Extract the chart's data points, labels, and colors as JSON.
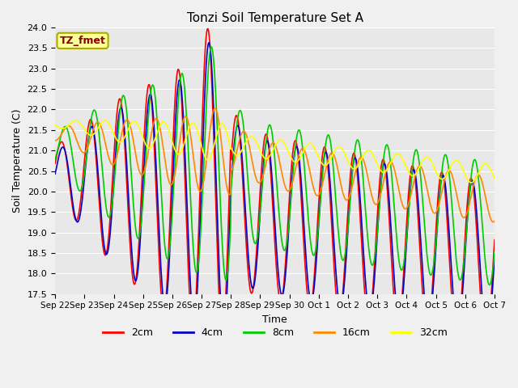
{
  "title": "Tonzi Soil Temperature Set A",
  "xlabel": "Time",
  "ylabel": "Soil Temperature (C)",
  "annotation": "TZ_fmet",
  "ylim": [
    17.5,
    24.0
  ],
  "yticks": [
    17.5,
    18.0,
    18.5,
    19.0,
    19.5,
    20.0,
    20.5,
    21.0,
    21.5,
    22.0,
    22.5,
    23.0,
    23.5,
    24.0
  ],
  "xtick_labels": [
    "Sep 22",
    "Sep 23",
    "Sep 24",
    "Sep 25",
    "Sep 26",
    "Sep 27",
    "Sep 28",
    "Sep 29",
    "Sep 30",
    "Oct 1",
    "Oct 2",
    "Oct 3",
    "Oct 4",
    "Oct 5",
    "Oct 6",
    "Oct 7"
  ],
  "colors": {
    "2cm": "#ff0000",
    "4cm": "#0000cc",
    "8cm": "#00cc00",
    "16cm": "#ff8800",
    "32cm": "#ffff00"
  },
  "line_width": 1.2,
  "plot_bg_color": "#e8e8e8",
  "fig_bg_color": "#f0f0f0",
  "annotation_bg": "#ffff99",
  "annotation_fg": "#880000",
  "annotation_border": "#aaaa00",
  "grid_color": "#ffffff"
}
